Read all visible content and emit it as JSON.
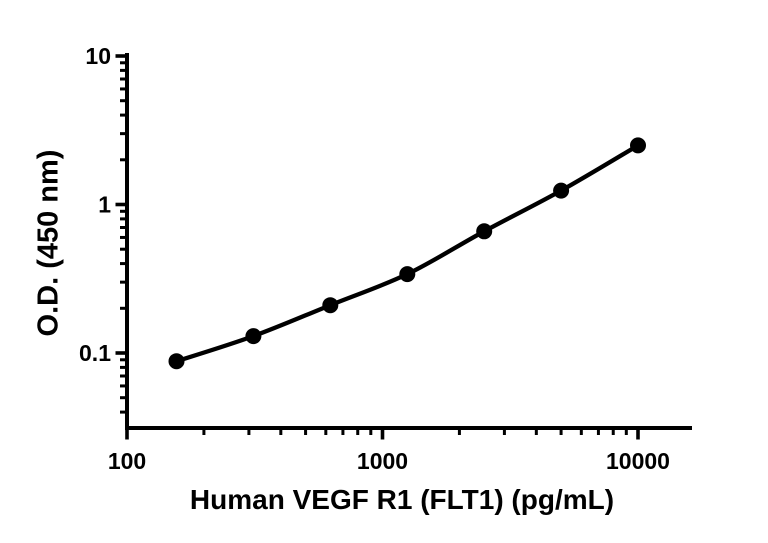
{
  "figure": {
    "background_color": "#ffffff",
    "ink_color": "#000000"
  },
  "chart_data": {
    "type": "line",
    "subtype": "elisa-standard-curve",
    "title": "",
    "xlabel": "Human VEGF R1 (FLT1) (pg/mL)",
    "ylabel": "O.D. (450 nm)",
    "x_scale": "log10",
    "y_scale": "log10",
    "x_range": [
      100,
      16500
    ],
    "y_range": [
      0.031,
      10
    ],
    "grid": false,
    "legend_shown": false,
    "marker_style": "filled-circle",
    "line_style": "smooth-solid",
    "series": [
      {
        "x_pg_ml": [
          156.25,
          312.5,
          625,
          1250,
          2500,
          5000,
          10000
        ],
        "od_450nm": [
          0.088,
          0.13,
          0.21,
          0.34,
          0.66,
          1.24,
          2.5
        ]
      }
    ],
    "x_ticks": {
      "values": [
        100,
        1000,
        10000
      ],
      "labels": [
        "100",
        "1000",
        "10000"
      ]
    },
    "y_ticks": {
      "values": [
        10,
        1,
        0.1
      ],
      "labels": [
        "10",
        "1",
        "0.1"
      ]
    }
  }
}
